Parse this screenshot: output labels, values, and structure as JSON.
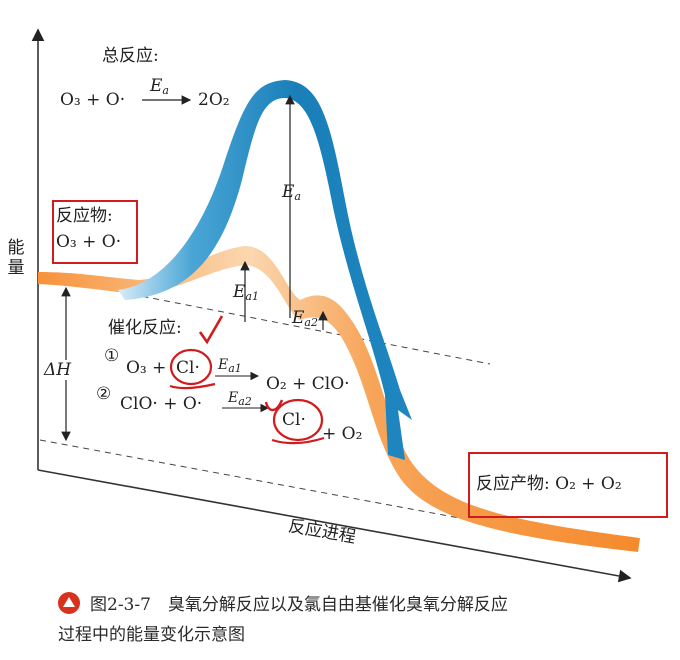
{
  "diagram": {
    "axis_y_label": "能量",
    "axis_x_label": "反应进程",
    "overall_title": "总反应:",
    "overall_eq_left": "O₃ + O·",
    "overall_eq_right": "2O₂",
    "ea_label": "E",
    "ea_sub": "a",
    "ea1_sub": "a1",
    "ea2_sub": "a2",
    "reactant_label": "反应物:",
    "reactant_formula": "O₃ + O·",
    "catalysis_title": "催化反应:",
    "step1_num": "①",
    "step1_left": "O₃ +",
    "step1_cl": "Cl·",
    "step1_right": "O₂ + ClO·",
    "step2_num": "②",
    "step2_left": "ClO· + O·",
    "step2_cl": "Cl·",
    "step2_right": "+ O₂",
    "delta_h": "ΔH",
    "product_label": "反应产物: O₂ + O₂",
    "colors": {
      "orange": "#f7923a",
      "blue": "#1e86c0",
      "red_mark": "#d01c1c"
    }
  },
  "caption": {
    "line1": "图2-3-7　臭氧分解反应以及氯自由基催化臭氧分解反应",
    "line2": "过程中的能量变化示意图"
  }
}
